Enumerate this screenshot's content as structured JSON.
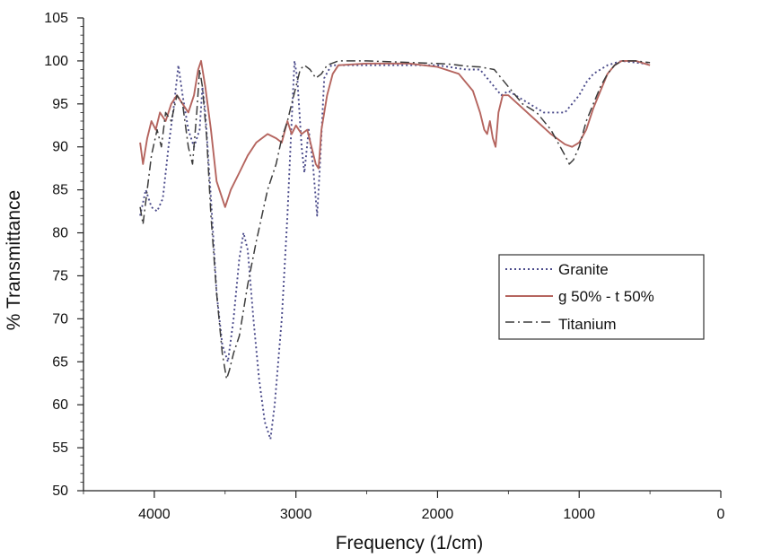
{
  "chart_data": {
    "type": "line",
    "xlabel": "Frequency (1/cm)",
    "ylabel": "% Transmittance",
    "xlim": [
      4500,
      0
    ],
    "ylim": [
      50,
      105
    ],
    "x_ticks": [
      4000,
      3000,
      2000,
      1000,
      0
    ],
    "y_ticks": [
      50,
      55,
      60,
      65,
      70,
      75,
      80,
      85,
      90,
      95,
      100,
      105
    ],
    "x_tick_labels": [
      "4000",
      "3000",
      "2000",
      "1000",
      "0"
    ],
    "y_tick_labels": [
      "50",
      "55",
      "60",
      "65",
      "70",
      "75",
      "80",
      "85",
      "90",
      "95",
      "100",
      "105"
    ],
    "grid": false,
    "legend_position": "center-right",
    "series": [
      {
        "name": "Granite",
        "style": "dotted",
        "color": "#4a4a8a",
        "points": [
          [
            4100,
            82
          ],
          [
            4060,
            85
          ],
          [
            4020,
            83
          ],
          [
            3980,
            82.5
          ],
          [
            3940,
            84
          ],
          [
            3900,
            90
          ],
          [
            3860,
            95
          ],
          [
            3830,
            99.5
          ],
          [
            3800,
            96
          ],
          [
            3760,
            92
          ],
          [
            3720,
            90
          ],
          [
            3680,
            92
          ],
          [
            3660,
            97
          ],
          [
            3640,
            94
          ],
          [
            3600,
            84
          ],
          [
            3560,
            73
          ],
          [
            3520,
            67
          ],
          [
            3480,
            65
          ],
          [
            3440,
            70
          ],
          [
            3400,
            77
          ],
          [
            3370,
            80
          ],
          [
            3340,
            78
          ],
          [
            3300,
            70
          ],
          [
            3260,
            63
          ],
          [
            3220,
            58
          ],
          [
            3180,
            56
          ],
          [
            3150,
            60
          ],
          [
            3100,
            70
          ],
          [
            3060,
            82
          ],
          [
            3030,
            93
          ],
          [
            3010,
            100
          ],
          [
            2990,
            98
          ],
          [
            2960,
            90
          ],
          [
            2940,
            87
          ],
          [
            2910,
            92
          ],
          [
            2880,
            88
          ],
          [
            2850,
            82
          ],
          [
            2830,
            88
          ],
          [
            2800,
            98
          ],
          [
            2750,
            99.5
          ],
          [
            2500,
            99.5
          ],
          [
            2000,
            99.5
          ],
          [
            1800,
            99
          ],
          [
            1700,
            99
          ],
          [
            1600,
            97
          ],
          [
            1550,
            96
          ],
          [
            1500,
            96.5
          ],
          [
            1400,
            95.5
          ],
          [
            1300,
            94.5
          ],
          [
            1250,
            94
          ],
          [
            1150,
            94
          ],
          [
            1100,
            94
          ],
          [
            1050,
            95
          ],
          [
            1000,
            96
          ],
          [
            950,
            97.5
          ],
          [
            900,
            98.5
          ],
          [
            800,
            99.5
          ],
          [
            700,
            100
          ],
          [
            600,
            99.8
          ],
          [
            500,
            99.6
          ]
        ]
      },
      {
        "name": "g 50% - t 50%",
        "style": "solid",
        "color": "#b5655f",
        "points": [
          [
            4100,
            90.5
          ],
          [
            4080,
            88
          ],
          [
            4050,
            91
          ],
          [
            4020,
            93
          ],
          [
            3990,
            92
          ],
          [
            3960,
            94
          ],
          [
            3920,
            93
          ],
          [
            3880,
            95
          ],
          [
            3840,
            96
          ],
          [
            3800,
            95
          ],
          [
            3760,
            94
          ],
          [
            3720,
            96
          ],
          [
            3690,
            99
          ],
          [
            3670,
            100
          ],
          [
            3640,
            97
          ],
          [
            3600,
            92
          ],
          [
            3560,
            86
          ],
          [
            3520,
            84
          ],
          [
            3500,
            83
          ],
          [
            3460,
            85
          ],
          [
            3400,
            87
          ],
          [
            3340,
            89
          ],
          [
            3280,
            90.5
          ],
          [
            3200,
            91.5
          ],
          [
            3140,
            91
          ],
          [
            3100,
            90.5
          ],
          [
            3060,
            93
          ],
          [
            3030,
            91.5
          ],
          [
            3000,
            92.5
          ],
          [
            2960,
            91.5
          ],
          [
            2920,
            92
          ],
          [
            2890,
            90
          ],
          [
            2860,
            88
          ],
          [
            2840,
            87.5
          ],
          [
            2820,
            92
          ],
          [
            2780,
            96
          ],
          [
            2740,
            98.5
          ],
          [
            2700,
            99.5
          ],
          [
            2500,
            99.7
          ],
          [
            2200,
            99.7
          ],
          [
            2000,
            99.3
          ],
          [
            1850,
            98.5
          ],
          [
            1750,
            96.5
          ],
          [
            1700,
            94
          ],
          [
            1670,
            92
          ],
          [
            1650,
            91.5
          ],
          [
            1630,
            93
          ],
          [
            1610,
            91
          ],
          [
            1590,
            90
          ],
          [
            1570,
            94
          ],
          [
            1540,
            96
          ],
          [
            1500,
            96
          ],
          [
            1400,
            94.5
          ],
          [
            1300,
            93
          ],
          [
            1200,
            91.5
          ],
          [
            1100,
            90.3
          ],
          [
            1050,
            90
          ],
          [
            1000,
            90.5
          ],
          [
            950,
            92
          ],
          [
            900,
            94.5
          ],
          [
            850,
            96.5
          ],
          [
            800,
            98.5
          ],
          [
            750,
            99.5
          ],
          [
            700,
            100
          ],
          [
            600,
            100
          ],
          [
            500,
            99.5
          ]
        ]
      },
      {
        "name": "Titanium",
        "style": "dashdot",
        "color": "#3c3c3c",
        "points": [
          [
            4100,
            83
          ],
          [
            4080,
            81
          ],
          [
            4050,
            85
          ],
          [
            4020,
            89
          ],
          [
            3980,
            92
          ],
          [
            3950,
            90
          ],
          [
            3920,
            94
          ],
          [
            3880,
            93
          ],
          [
            3840,
            96
          ],
          [
            3800,
            95
          ],
          [
            3760,
            90
          ],
          [
            3730,
            88
          ],
          [
            3700,
            94
          ],
          [
            3680,
            99
          ],
          [
            3660,
            97
          ],
          [
            3630,
            91
          ],
          [
            3600,
            82
          ],
          [
            3560,
            73
          ],
          [
            3520,
            66
          ],
          [
            3490,
            63
          ],
          [
            3470,
            64
          ],
          [
            3440,
            66
          ],
          [
            3400,
            68
          ],
          [
            3340,
            74
          ],
          [
            3280,
            79
          ],
          [
            3200,
            85
          ],
          [
            3140,
            88
          ],
          [
            3100,
            91
          ],
          [
            3060,
            93
          ],
          [
            3030,
            95
          ],
          [
            3000,
            97
          ],
          [
            2970,
            99
          ],
          [
            2940,
            99.5
          ],
          [
            2900,
            99
          ],
          [
            2860,
            98
          ],
          [
            2820,
            98.5
          ],
          [
            2780,
            99.5
          ],
          [
            2700,
            100
          ],
          [
            2500,
            100
          ],
          [
            2000,
            99.7
          ],
          [
            1900,
            99.6
          ],
          [
            1800,
            99.4
          ],
          [
            1700,
            99.3
          ],
          [
            1600,
            99
          ],
          [
            1500,
            97
          ],
          [
            1400,
            95
          ],
          [
            1300,
            94
          ],
          [
            1200,
            92
          ],
          [
            1100,
            89
          ],
          [
            1070,
            88
          ],
          [
            1040,
            88.5
          ],
          [
            1000,
            90
          ],
          [
            950,
            93
          ],
          [
            900,
            95
          ],
          [
            850,
            97
          ],
          [
            800,
            98.5
          ],
          [
            750,
            99.5
          ],
          [
            700,
            100
          ],
          [
            600,
            100
          ],
          [
            500,
            99.8
          ]
        ]
      }
    ]
  }
}
